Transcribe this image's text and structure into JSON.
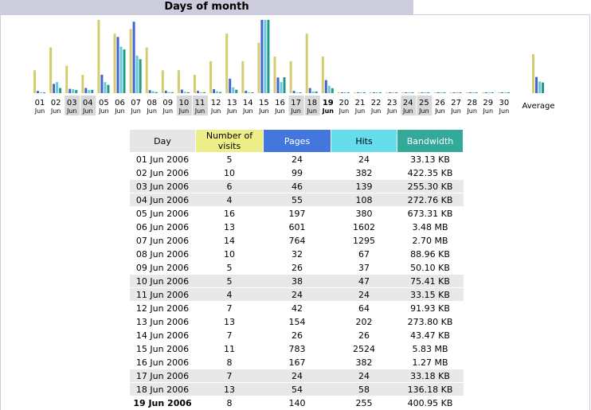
{
  "header": {
    "title": "Days of month"
  },
  "colors": {
    "visits": "#d4cc6e",
    "pages": "#4466cc",
    "hits": "#66ccdd",
    "bandwidth": "#229988",
    "day_header_bg": "#e6e6e6",
    "visits_header_bg": "#eeee88",
    "pages_header_bg": "#4477dd",
    "hits_header_bg": "#66dded",
    "bandwidth_header_bg": "#33aa99"
  },
  "table": {
    "columns": [
      "Day",
      "Number of visits",
      "Pages",
      "Hits",
      "Bandwidth"
    ],
    "rows": [
      {
        "day": "01 Jun 2006",
        "visits": "5",
        "pages": "24",
        "hits": "24",
        "bandwidth": "33.13 KB",
        "shaded": false,
        "bold": false
      },
      {
        "day": "02 Jun 2006",
        "visits": "10",
        "pages": "99",
        "hits": "382",
        "bandwidth": "422.35 KB",
        "shaded": false,
        "bold": false
      },
      {
        "day": "03 Jun 2006",
        "visits": "6",
        "pages": "46",
        "hits": "139",
        "bandwidth": "255.30 KB",
        "shaded": true,
        "bold": false
      },
      {
        "day": "04 Jun 2006",
        "visits": "4",
        "pages": "55",
        "hits": "108",
        "bandwidth": "272.76 KB",
        "shaded": true,
        "bold": false
      },
      {
        "day": "05 Jun 2006",
        "visits": "16",
        "pages": "197",
        "hits": "380",
        "bandwidth": "673.31 KB",
        "shaded": false,
        "bold": false
      },
      {
        "day": "06 Jun 2006",
        "visits": "13",
        "pages": "601",
        "hits": "1602",
        "bandwidth": "3.48 MB",
        "shaded": false,
        "bold": false
      },
      {
        "day": "07 Jun 2006",
        "visits": "14",
        "pages": "764",
        "hits": "1295",
        "bandwidth": "2.70 MB",
        "shaded": false,
        "bold": false
      },
      {
        "day": "08 Jun 2006",
        "visits": "10",
        "pages": "32",
        "hits": "67",
        "bandwidth": "88.96 KB",
        "shaded": false,
        "bold": false
      },
      {
        "day": "09 Jun 2006",
        "visits": "5",
        "pages": "26",
        "hits": "37",
        "bandwidth": "50.10 KB",
        "shaded": false,
        "bold": false
      },
      {
        "day": "10 Jun 2006",
        "visits": "5",
        "pages": "38",
        "hits": "47",
        "bandwidth": "75.41 KB",
        "shaded": true,
        "bold": false
      },
      {
        "day": "11 Jun 2006",
        "visits": "4",
        "pages": "24",
        "hits": "24",
        "bandwidth": "33.15 KB",
        "shaded": true,
        "bold": false
      },
      {
        "day": "12 Jun 2006",
        "visits": "7",
        "pages": "42",
        "hits": "64",
        "bandwidth": "91.93 KB",
        "shaded": false,
        "bold": false
      },
      {
        "day": "13 Jun 2006",
        "visits": "13",
        "pages": "154",
        "hits": "202",
        "bandwidth": "273.80 KB",
        "shaded": false,
        "bold": false
      },
      {
        "day": "14 Jun 2006",
        "visits": "7",
        "pages": "26",
        "hits": "26",
        "bandwidth": "43.47 KB",
        "shaded": false,
        "bold": false
      },
      {
        "day": "15 Jun 2006",
        "visits": "11",
        "pages": "783",
        "hits": "2524",
        "bandwidth": "5.83 MB",
        "shaded": false,
        "bold": false
      },
      {
        "day": "16 Jun 2006",
        "visits": "8",
        "pages": "167",
        "hits": "382",
        "bandwidth": "1.27 MB",
        "shaded": false,
        "bold": false
      },
      {
        "day": "17 Jun 2006",
        "visits": "7",
        "pages": "24",
        "hits": "24",
        "bandwidth": "33.18 KB",
        "shaded": true,
        "bold": false
      },
      {
        "day": "18 Jun 2006",
        "visits": "13",
        "pages": "54",
        "hits": "58",
        "bandwidth": "136.18 KB",
        "shaded": true,
        "bold": false
      },
      {
        "day": "19 Jun 2006",
        "visits": "8",
        "pages": "140",
        "hits": "255",
        "bandwidth": "400.95 KB",
        "shaded": false,
        "bold": true
      }
    ]
  },
  "chart_data": {
    "type": "bar",
    "title": "Days of month",
    "categories": [
      "01",
      "02",
      "03",
      "04",
      "05",
      "06",
      "07",
      "08",
      "09",
      "10",
      "11",
      "12",
      "13",
      "14",
      "15",
      "16",
      "17",
      "18",
      "19",
      "20",
      "21",
      "22",
      "23",
      "24",
      "25",
      "26",
      "27",
      "28",
      "29",
      "30"
    ],
    "month_label": "Jun",
    "weekend_days": [
      "03",
      "04",
      "10",
      "11",
      "17",
      "18",
      "24",
      "25"
    ],
    "current_day": "19",
    "average_label": "Average",
    "series": [
      {
        "name": "Number of visits",
        "values": [
          5,
          10,
          6,
          4,
          16,
          13,
          14,
          10,
          5,
          5,
          4,
          7,
          13,
          7,
          11,
          8,
          7,
          13,
          8,
          0,
          0,
          0,
          0,
          0,
          0,
          0,
          0,
          0,
          0,
          0
        ],
        "average": 8.5
      },
      {
        "name": "Pages",
        "values": [
          24,
          99,
          46,
          55,
          197,
          601,
          764,
          32,
          26,
          38,
          24,
          42,
          154,
          26,
          783,
          167,
          24,
          54,
          140,
          0,
          0,
          0,
          0,
          0,
          0,
          0,
          0,
          0,
          0,
          0
        ],
        "average": 173
      },
      {
        "name": "Hits",
        "values": [
          24,
          382,
          139,
          108,
          380,
          1602,
          1295,
          67,
          37,
          47,
          24,
          64,
          202,
          26,
          2524,
          382,
          24,
          58,
          255,
          0,
          0,
          0,
          0,
          0,
          0,
          0,
          0,
          0,
          0,
          0
        ],
        "average": 397
      },
      {
        "name": "Bandwidth",
        "values": [
          33.13,
          422.35,
          255.3,
          272.76,
          673.31,
          3563.52,
          2764.8,
          88.96,
          50.1,
          75.41,
          33.15,
          91.93,
          273.8,
          43.47,
          5969.92,
          1300.48,
          33.18,
          136.18,
          400.95,
          0,
          0,
          0,
          0,
          0,
          0,
          0,
          0,
          0,
          0,
          0
        ],
        "unit": "KB",
        "average": 870
      }
    ]
  }
}
